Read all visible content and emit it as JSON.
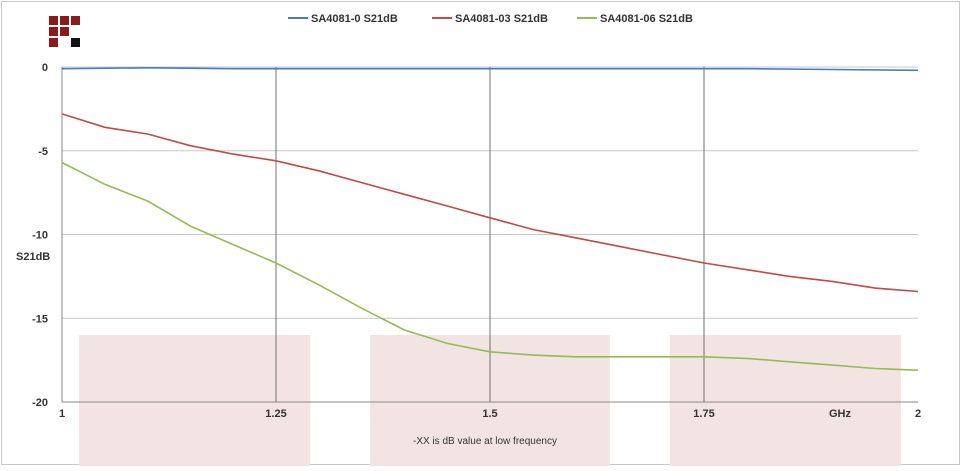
{
  "chart_data": {
    "type": "line",
    "title": "",
    "xlabel": "GHz",
    "ylabel": "S21dB",
    "xlim": [
      1,
      2
    ],
    "ylim": [
      -20,
      0
    ],
    "xticks": [
      1,
      1.25,
      1.5,
      1.75,
      2
    ],
    "xtick_labels": [
      "1",
      "1.25",
      "1.5",
      "1.75",
      "2"
    ],
    "yticks": [
      0,
      -5,
      -10,
      -15,
      -20
    ],
    "ytick_labels": [
      "0",
      "-5",
      "-10",
      "-15",
      "-20"
    ],
    "grid": true,
    "legend_position": "top-center",
    "annotation": "-XX is dB value at low frequency",
    "series": [
      {
        "name": "SA4081-0 S21dB",
        "color": "#4a7ebb",
        "x": [
          1,
          1.1,
          1.2,
          1.3,
          1.4,
          1.5,
          1.6,
          1.7,
          1.8,
          1.9,
          2
        ],
        "y": [
          -0.1,
          -0.05,
          -0.1,
          -0.1,
          -0.1,
          -0.1,
          -0.1,
          -0.1,
          -0.1,
          -0.15,
          -0.2
        ]
      },
      {
        "name": "SA4081-03 S21dB",
        "color": "#be4b48",
        "x": [
          1,
          1.05,
          1.1,
          1.15,
          1.2,
          1.25,
          1.3,
          1.35,
          1.4,
          1.45,
          1.5,
          1.55,
          1.6,
          1.65,
          1.7,
          1.75,
          1.8,
          1.85,
          1.9,
          1.95,
          2
        ],
        "y": [
          -2.8,
          -3.6,
          -4.0,
          -4.7,
          -5.2,
          -5.6,
          -6.2,
          -6.9,
          -7.6,
          -8.3,
          -9.0,
          -9.7,
          -10.2,
          -10.7,
          -11.2,
          -11.7,
          -12.1,
          -12.5,
          -12.8,
          -13.2,
          -13.4
        ]
      },
      {
        "name": "SA4081-06 S21dB",
        "color": "#98b954",
        "x": [
          1,
          1.05,
          1.1,
          1.15,
          1.2,
          1.25,
          1.3,
          1.35,
          1.4,
          1.45,
          1.5,
          1.55,
          1.6,
          1.65,
          1.7,
          1.75,
          1.8,
          1.85,
          1.9,
          1.95,
          2
        ],
        "y": [
          -5.7,
          -7.0,
          -8.0,
          -9.5,
          -10.6,
          -11.7,
          -13.0,
          -14.4,
          -15.7,
          -16.5,
          -17.0,
          -17.2,
          -17.3,
          -17.3,
          -17.3,
          -17.3,
          -17.4,
          -17.6,
          -17.8,
          -18.0,
          -18.1
        ]
      }
    ],
    "highlight_bands": [
      {
        "x_from": 1.02,
        "x_to": 1.29,
        "y_from": -16,
        "y_to": -20
      },
      {
        "x_from": 1.36,
        "x_to": 1.64,
        "y_from": -16,
        "y_to": -20
      },
      {
        "x_from": 1.71,
        "x_to": 1.98,
        "y_from": -16,
        "y_to": -20
      }
    ]
  },
  "colors": {
    "logo_red": "#8b1a1a",
    "logo_black": "#111111",
    "band_fill": "#f3e4e4",
    "gridline": "#c8c8c8",
    "vertical_gridline": "#707070",
    "frame": "#c8c8c8"
  }
}
